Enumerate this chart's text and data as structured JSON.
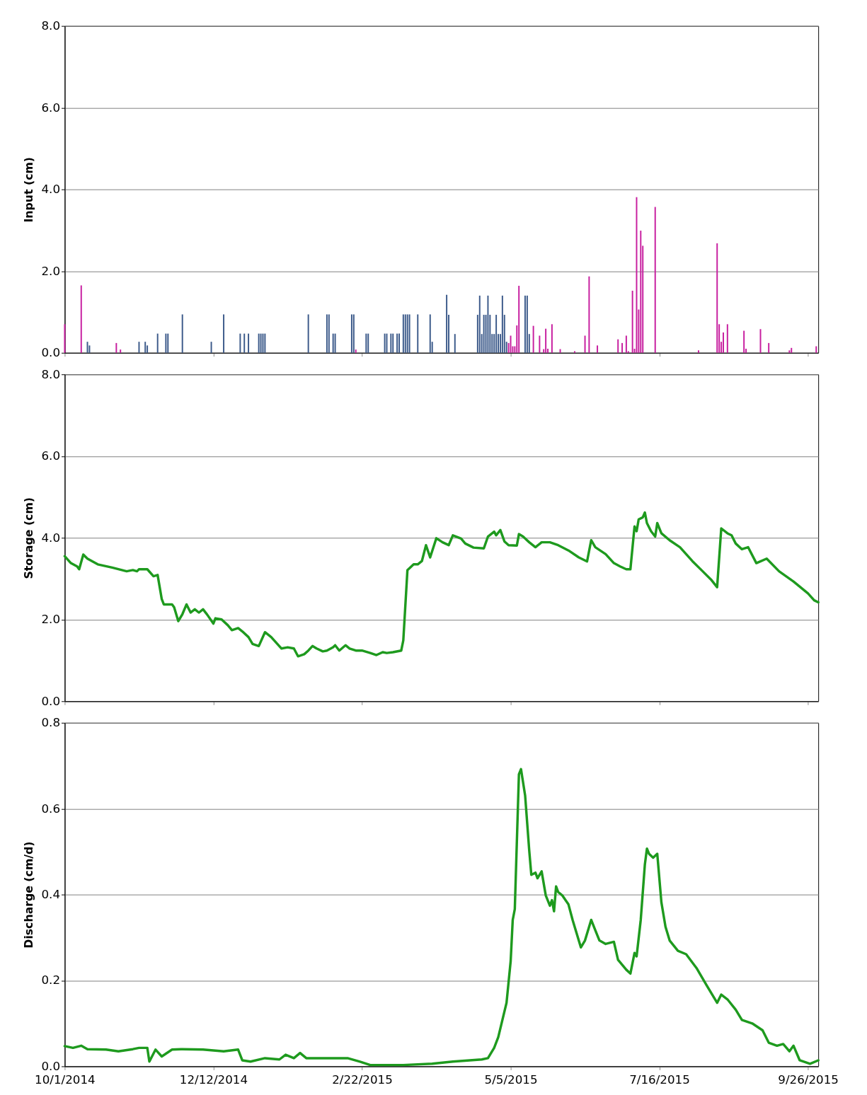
{
  "chart_data": [
    {
      "type": "bar",
      "ylabel": "Input (cm)",
      "xlim": [
        "2014-10-01",
        "2015-10-01"
      ],
      "xticks": [
        {
          "value": "2014-10-01",
          "label": null
        },
        {
          "value": "2014-12-12",
          "label": null
        },
        {
          "value": "2015-02-22",
          "label": null
        },
        {
          "value": "2015-05-05",
          "label": null
        },
        {
          "value": "2015-07-16",
          "label": null
        },
        {
          "value": "2015-09-26",
          "label": null
        }
      ],
      "ylim": [
        0,
        8
      ],
      "yticks": [
        {
          "value": 0,
          "label": "0.0"
        },
        {
          "value": 2,
          "label": "2.0"
        },
        {
          "value": 4,
          "label": "4.0"
        },
        {
          "value": 6,
          "label": "6.0"
        },
        {
          "value": 8,
          "label": "8.0"
        }
      ],
      "grid": "y",
      "tick_labels": "y",
      "series": [
        {
          "color": "#3c5a8a",
          "x": [
            "2014-10-12",
            "2014-10-13",
            "2014-11-06",
            "2014-11-09",
            "2014-11-10",
            "2014-11-15",
            "2014-11-19",
            "2014-11-20",
            "2014-11-27",
            "2014-12-11",
            "2014-12-17",
            "2014-12-25",
            "2014-12-27",
            "2014-12-29",
            "2015-01-03",
            "2015-01-04",
            "2015-01-05",
            "2015-01-06",
            "2015-01-27",
            "2015-02-05",
            "2015-02-06",
            "2015-02-08",
            "2015-02-09",
            "2015-02-17",
            "2015-02-18",
            "2015-02-24",
            "2015-02-25",
            "2015-03-05",
            "2015-03-06",
            "2015-03-08",
            "2015-03-09",
            "2015-03-11",
            "2015-03-12",
            "2015-03-14",
            "2015-03-15",
            "2015-03-16",
            "2015-03-17",
            "2015-03-21",
            "2015-03-27",
            "2015-03-28",
            "2015-04-04",
            "2015-04-05",
            "2015-04-08",
            "2015-04-19",
            "2015-04-20",
            "2015-04-21",
            "2015-04-22",
            "2015-04-23",
            "2015-04-24",
            "2015-04-25",
            "2015-04-26",
            "2015-04-27",
            "2015-04-28",
            "2015-04-29",
            "2015-04-30",
            "2015-05-01",
            "2015-05-02",
            "2015-05-03",
            "2015-05-12",
            "2015-05-13",
            "2015-05-14"
          ],
          "values": [
            0.27,
            0.18,
            0.27,
            0.27,
            0.18,
            0.47,
            0.47,
            0.47,
            0.94,
            0.27,
            0.94,
            0.47,
            0.47,
            0.47,
            0.47,
            0.47,
            0.47,
            0.47,
            0.94,
            0.94,
            0.94,
            0.47,
            0.47,
            0.94,
            0.94,
            0.47,
            0.47,
            0.47,
            0.47,
            0.47,
            0.47,
            0.47,
            0.47,
            0.94,
            0.94,
            0.94,
            0.94,
            0.94,
            0.94,
            0.27,
            1.42,
            0.93,
            0.46,
            0.93,
            1.4,
            0.46,
            0.93,
            0.93,
            1.4,
            0.93,
            0.46,
            0.46,
            0.93,
            0.46,
            0.46,
            1.4,
            0.93,
            0.27,
            1.4,
            1.4,
            0.46
          ]
        },
        {
          "color": "#c71e9f",
          "x": [
            "2014-10-01",
            "2014-10-09",
            "2014-10-26",
            "2014-10-28",
            "2015-02-19",
            "2015-05-04",
            "2015-05-05",
            "2015-05-06",
            "2015-05-07",
            "2015-05-08",
            "2015-05-09",
            "2015-05-16",
            "2015-05-19",
            "2015-05-21",
            "2015-05-22",
            "2015-05-23",
            "2015-05-25",
            "2015-05-29",
            "2015-06-05",
            "2015-06-10",
            "2015-06-12",
            "2015-06-16",
            "2015-06-26",
            "2015-06-28",
            "2015-06-30",
            "2015-07-01",
            "2015-07-03",
            "2015-07-04",
            "2015-07-05",
            "2015-07-06",
            "2015-07-07",
            "2015-07-08",
            "2015-07-14",
            "2015-08-04",
            "2015-08-13",
            "2015-08-14",
            "2015-08-15",
            "2015-08-16",
            "2015-08-18",
            "2015-08-26",
            "2015-08-27",
            "2015-09-03",
            "2015-09-07",
            "2015-09-17",
            "2015-09-18",
            "2015-09-30"
          ],
          "values": [
            0.7,
            1.65,
            0.24,
            0.08,
            0.08,
            0.24,
            0.42,
            0.16,
            0.16,
            0.67,
            1.64,
            0.66,
            0.42,
            0.09,
            0.59,
            0.1,
            0.7,
            0.09,
            0.04,
            0.42,
            1.87,
            0.18,
            0.33,
            0.24,
            0.42,
            0.04,
            1.52,
            0.1,
            3.81,
            1.06,
            2.99,
            2.62,
            3.57,
            0.06,
            2.68,
            0.7,
            0.27,
            0.5,
            0.7,
            0.54,
            0.1,
            0.58,
            0.24,
            0.06,
            0.12,
            0.16
          ]
        }
      ]
    },
    {
      "type": "line",
      "ylabel": "Storage (cm)",
      "xlim": [
        "2014-10-01",
        "2015-10-01"
      ],
      "xticks": [
        {
          "value": "2014-10-01",
          "label": null
        },
        {
          "value": "2014-12-12",
          "label": null
        },
        {
          "value": "2015-02-22",
          "label": null
        },
        {
          "value": "2015-05-05",
          "label": null
        },
        {
          "value": "2015-07-16",
          "label": null
        },
        {
          "value": "2015-09-26",
          "label": null
        }
      ],
      "ylim": [
        0,
        8
      ],
      "yticks": [
        {
          "value": 0,
          "label": "0.0"
        },
        {
          "value": 2,
          "label": "2.0"
        },
        {
          "value": 4,
          "label": "4.0"
        },
        {
          "value": 6,
          "label": "6.0"
        },
        {
          "value": 8,
          "label": "8.0"
        }
      ],
      "grid": "y",
      "tick_labels": "y",
      "series": [
        {
          "color": "#1e9a1e",
          "x": [
            "2014-10-01",
            "2014-10-04",
            "2014-10-07",
            "2014-10-08",
            "2014-10-10",
            "2014-10-12",
            "2014-10-17",
            "2014-10-24",
            "2014-10-31",
            "2014-11-03",
            "2014-11-05",
            "2014-11-06",
            "2014-11-10",
            "2014-11-13",
            "2014-11-15",
            "2014-11-17",
            "2014-11-18",
            "2014-11-22",
            "2014-11-23",
            "2014-11-25",
            "2014-11-27",
            "2014-11-29",
            "2014-12-01",
            "2014-12-03",
            "2014-12-05",
            "2014-12-07",
            "2014-12-09",
            "2014-12-12",
            "2014-12-13",
            "2014-12-16",
            "2014-12-19",
            "2014-12-21",
            "2014-12-24",
            "2014-12-26",
            "2014-12-29",
            "2014-12-31",
            "2015-01-03",
            "2015-01-06",
            "2015-01-09",
            "2015-01-12",
            "2015-01-14",
            "2015-01-17",
            "2015-01-20",
            "2015-01-22",
            "2015-01-25",
            "2015-01-27",
            "2015-01-29",
            "2015-01-31",
            "2015-02-03",
            "2015-02-05",
            "2015-02-08",
            "2015-02-09",
            "2015-02-11",
            "2015-02-14",
            "2015-02-16",
            "2015-02-19",
            "2015-02-22",
            "2015-02-26",
            "2015-03-01",
            "2015-03-04",
            "2015-03-06",
            "2015-03-09",
            "2015-03-13",
            "2015-03-14",
            "2015-03-16",
            "2015-03-19",
            "2015-03-21",
            "2015-03-23",
            "2015-03-25",
            "2015-03-27",
            "2015-03-30",
            "2015-04-02",
            "2015-04-05",
            "2015-04-07",
            "2015-04-11",
            "2015-04-13",
            "2015-04-17",
            "2015-04-22",
            "2015-04-24",
            "2015-04-27",
            "2015-04-28",
            "2015-04-30",
            "2015-05-02",
            "2015-05-04",
            "2015-05-08",
            "2015-05-09",
            "2015-05-11",
            "2015-05-14",
            "2015-05-17",
            "2015-05-20",
            "2015-05-24",
            "2015-05-28",
            "2015-06-02",
            "2015-06-07",
            "2015-06-11",
            "2015-06-13",
            "2015-06-15",
            "2015-06-20",
            "2015-06-24",
            "2015-06-27",
            "2015-06-30",
            "2015-07-02",
            "2015-07-04",
            "2015-07-05",
            "2015-07-06",
            "2015-07-08",
            "2015-07-09",
            "2015-07-10",
            "2015-07-12",
            "2015-07-14",
            "2015-07-15",
            "2015-07-17",
            "2015-07-21",
            "2015-07-26",
            "2015-07-29",
            "2015-08-01",
            "2015-08-06",
            "2015-08-10",
            "2015-08-13",
            "2015-08-15",
            "2015-08-18",
            "2015-08-20",
            "2015-08-22",
            "2015-08-25",
            "2015-08-28",
            "2015-09-01",
            "2015-09-06",
            "2015-09-12",
            "2015-09-19",
            "2015-09-26",
            "2015-09-29",
            "2015-10-01"
          ],
          "values": [
            3.55,
            3.38,
            3.3,
            3.23,
            3.59,
            3.49,
            3.35,
            3.27,
            3.18,
            3.21,
            3.18,
            3.23,
            3.23,
            3.06,
            3.09,
            2.5,
            2.37,
            2.37,
            2.3,
            1.96,
            2.13,
            2.37,
            2.17,
            2.25,
            2.17,
            2.25,
            2.12,
            1.9,
            2.03,
            2.0,
            1.86,
            1.74,
            1.79,
            1.71,
            1.57,
            1.4,
            1.35,
            1.69,
            1.57,
            1.4,
            1.29,
            1.32,
            1.29,
            1.1,
            1.15,
            1.24,
            1.35,
            1.29,
            1.22,
            1.24,
            1.32,
            1.37,
            1.24,
            1.37,
            1.29,
            1.24,
            1.24,
            1.18,
            1.13,
            1.2,
            1.18,
            1.2,
            1.24,
            1.49,
            3.21,
            3.35,
            3.35,
            3.43,
            3.82,
            3.52,
            3.99,
            3.89,
            3.82,
            4.06,
            3.98,
            3.86,
            3.76,
            3.74,
            4.03,
            4.15,
            4.06,
            4.19,
            3.91,
            3.82,
            3.81,
            4.09,
            4.03,
            3.89,
            3.77,
            3.89,
            3.89,
            3.82,
            3.69,
            3.52,
            3.42,
            3.94,
            3.77,
            3.6,
            3.38,
            3.3,
            3.23,
            3.23,
            4.28,
            4.16,
            4.45,
            4.5,
            4.62,
            4.36,
            4.16,
            4.03,
            4.36,
            4.11,
            3.94,
            3.77,
            3.6,
            3.43,
            3.18,
            2.98,
            2.79,
            4.23,
            4.11,
            4.06,
            3.86,
            3.72,
            3.77,
            3.38,
            3.49,
            3.18,
            2.93,
            2.64,
            2.47,
            2.42
          ]
        }
      ]
    },
    {
      "type": "line",
      "ylabel": "Discharge (cm/d)",
      "xlim": [
        "2014-10-01",
        "2015-10-01"
      ],
      "xticks": [
        {
          "value": "2014-10-01",
          "label": "10/1/2014"
        },
        {
          "value": "2014-12-12",
          "label": "12/12/2014"
        },
        {
          "value": "2015-02-22",
          "label": "2/22/2015"
        },
        {
          "value": "2015-05-05",
          "label": "5/5/2015"
        },
        {
          "value": "2015-07-16",
          "label": "7/16/2015"
        },
        {
          "value": "2015-09-26",
          "label": "9/26/2015"
        }
      ],
      "ylim": [
        0,
        0.8
      ],
      "yticks": [
        {
          "value": 0,
          "label": "0.0"
        },
        {
          "value": 0.2,
          "label": "0.2"
        },
        {
          "value": 0.4,
          "label": "0.4"
        },
        {
          "value": 0.6,
          "label": "0.6"
        },
        {
          "value": 0.8,
          "label": "0.8"
        }
      ],
      "grid": "y",
      "series": [
        {
          "color": "#1e9a1e",
          "x": [
            "2014-10-01",
            "2014-10-05",
            "2014-10-09",
            "2014-10-12",
            "2014-10-21",
            "2014-10-27",
            "2014-11-03",
            "2014-11-06",
            "2014-11-10",
            "2014-11-11",
            "2014-11-14",
            "2014-11-17",
            "2014-11-22",
            "2014-11-27",
            "2014-12-07",
            "2014-12-17",
            "2014-12-24",
            "2014-12-26",
            "2014-12-30",
            "2015-01-06",
            "2015-01-13",
            "2015-01-16",
            "2015-01-20",
            "2015-01-23",
            "2015-01-26",
            "2015-02-05",
            "2015-02-15",
            "2015-02-21",
            "2015-02-26",
            "2015-03-14",
            "2015-03-28",
            "2015-04-07",
            "2015-04-21",
            "2015-04-24",
            "2015-04-27",
            "2015-04-29",
            "2015-05-01",
            "2015-05-03",
            "2015-05-05",
            "2015-05-06",
            "2015-05-07",
            "2015-05-09",
            "2015-05-10",
            "2015-05-12",
            "2015-05-14",
            "2015-05-15",
            "2015-05-17",
            "2015-05-18",
            "2015-05-20",
            "2015-05-22",
            "2015-05-24",
            "2015-05-25",
            "2015-05-26",
            "2015-05-27",
            "2015-05-28",
            "2015-05-30",
            "2015-06-02",
            "2015-06-04",
            "2015-06-05",
            "2015-06-08",
            "2015-06-10",
            "2015-06-13",
            "2015-06-15",
            "2015-06-17",
            "2015-06-20",
            "2015-06-24",
            "2015-06-26",
            "2015-06-30",
            "2015-07-02",
            "2015-07-04",
            "2015-07-05",
            "2015-07-07",
            "2015-07-09",
            "2015-07-10",
            "2015-07-11",
            "2015-07-13",
            "2015-07-15",
            "2015-07-17",
            "2015-07-19",
            "2015-07-21",
            "2015-07-25",
            "2015-07-29",
            "2015-08-03",
            "2015-08-08",
            "2015-08-13",
            "2015-08-15",
            "2015-08-18",
            "2015-08-22",
            "2015-08-25",
            "2015-08-30",
            "2015-09-04",
            "2015-09-07",
            "2015-09-11",
            "2015-09-14",
            "2015-09-17",
            "2015-09-19",
            "2015-09-22",
            "2015-09-27",
            "2015-10-01"
          ],
          "values": [
            0.047,
            0.043,
            0.048,
            0.04,
            0.039,
            0.035,
            0.04,
            0.043,
            0.043,
            0.011,
            0.039,
            0.023,
            0.039,
            0.04,
            0.039,
            0.035,
            0.039,
            0.014,
            0.011,
            0.019,
            0.016,
            0.027,
            0.019,
            0.031,
            0.019,
            0.019,
            0.019,
            0.011,
            0.003,
            0.003,
            0.006,
            0.011,
            0.016,
            0.019,
            0.043,
            0.068,
            0.108,
            0.148,
            0.245,
            0.341,
            0.366,
            0.68,
            0.692,
            0.631,
            0.502,
            0.446,
            0.451,
            0.438,
            0.454,
            0.398,
            0.374,
            0.387,
            0.361,
            0.419,
            0.406,
            0.398,
            0.377,
            0.341,
            0.325,
            0.277,
            0.293,
            0.341,
            0.317,
            0.293,
            0.285,
            0.29,
            0.248,
            0.225,
            0.216,
            0.264,
            0.256,
            0.341,
            0.47,
            0.507,
            0.495,
            0.486,
            0.495,
            0.382,
            0.325,
            0.293,
            0.269,
            0.261,
            0.229,
            0.188,
            0.148,
            0.167,
            0.156,
            0.132,
            0.108,
            0.1,
            0.084,
            0.055,
            0.048,
            0.052,
            0.035,
            0.048,
            0.014,
            0.006,
            0.014
          ]
        }
      ]
    }
  ]
}
